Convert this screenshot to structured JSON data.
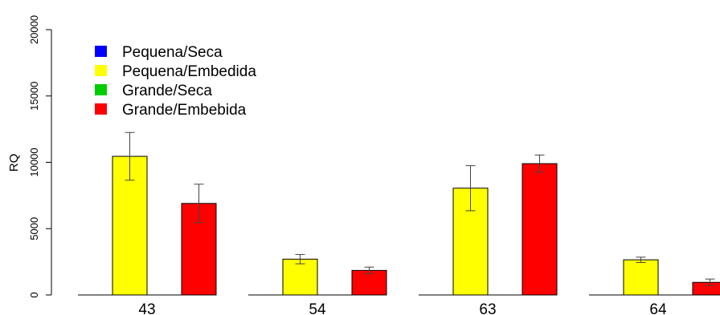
{
  "chart_data": {
    "type": "bar",
    "title": "",
    "xlabel": "",
    "ylabel": "RQ",
    "ylim": [
      0,
      20000
    ],
    "yticks": [
      0,
      5000,
      10000,
      15000,
      20000
    ],
    "categories": [
      "43",
      "54",
      "63",
      "64"
    ],
    "grid": false,
    "legend_position": "top-left",
    "error_bars": true,
    "series": [
      {
        "name": "Pequena/Seca",
        "color": "#0000ff",
        "values": [
          0,
          0,
          0,
          0
        ],
        "errors": [
          0,
          0,
          0,
          0
        ]
      },
      {
        "name": "Pequena/Embedida",
        "color": "#ffff00",
        "values": [
          10450,
          2700,
          8050,
          2650
        ],
        "errors": [
          1800,
          350,
          1700,
          200
        ]
      },
      {
        "name": "Grande/Seca",
        "color": "#00cd00",
        "values": [
          0,
          0,
          0,
          0
        ],
        "errors": [
          0,
          0,
          0,
          0
        ]
      },
      {
        "name": "Grande/Embebida",
        "color": "#ff0000",
        "values": [
          6900,
          1850,
          9900,
          950
        ],
        "errors": [
          1450,
          250,
          650,
          250
        ]
      }
    ]
  }
}
